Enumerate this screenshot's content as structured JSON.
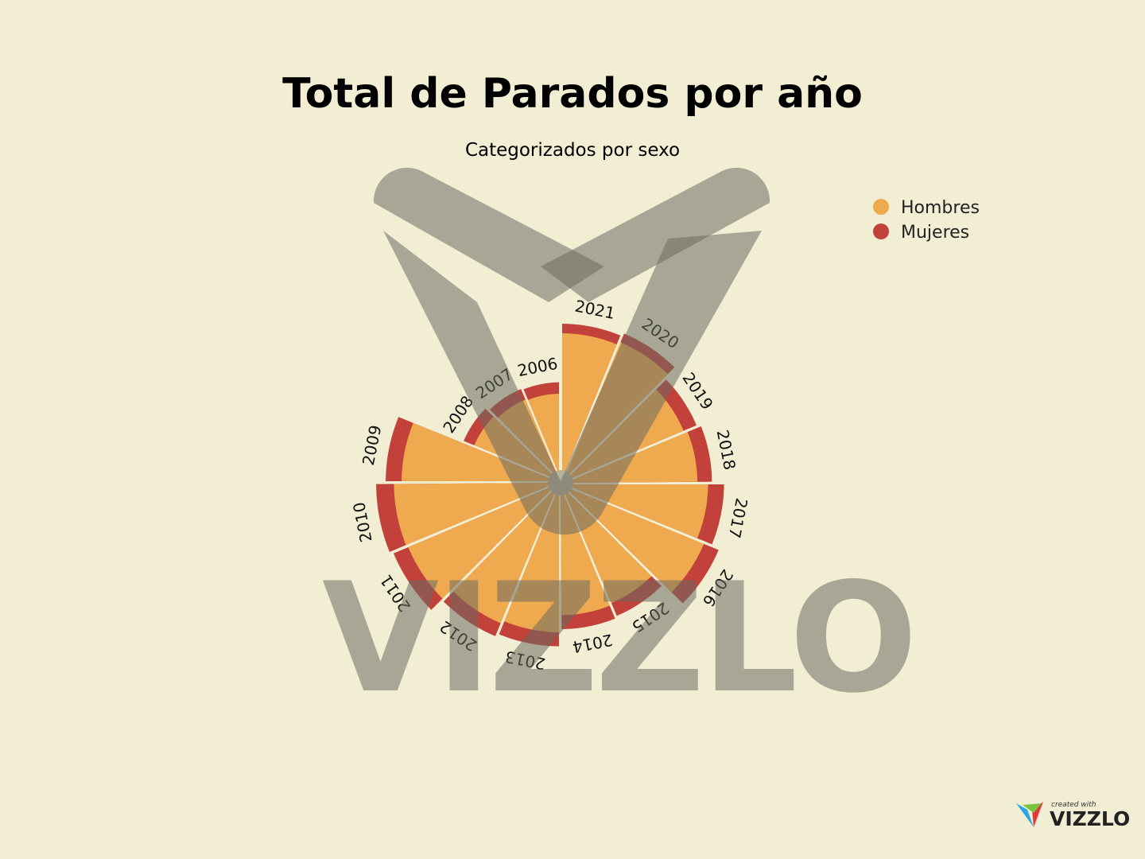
{
  "chart_data": {
    "type": "polar-bar",
    "title": "Total de Parados por año",
    "subtitle": "Categorizados por sexo",
    "legend_position": "top-right",
    "series": [
      {
        "name": "Hombres",
        "color": "#efa94e"
      },
      {
        "name": "Mujeres",
        "color": "#c2413b"
      }
    ],
    "categories": [
      "2006",
      "2007",
      "2008",
      "2009",
      "2010",
      "2011",
      "2012",
      "2013",
      "2014",
      "2015",
      "2016",
      "2017",
      "2018",
      "2019",
      "2020",
      "2021"
    ],
    "values": {
      "Hombres": [
        140,
        142,
        148,
        250,
        262,
        260,
        240,
        235,
        208,
        205,
        245,
        232,
        215,
        210,
        240,
        235
      ],
      "Mujeres": [
        158,
        160,
        166,
        275,
        290,
        285,
        262,
        257,
        230,
        227,
        270,
        257,
        238,
        232,
        255,
        250
      ]
    }
  },
  "legend": {
    "hombres": "Hombres",
    "mujeres": "Mujeres"
  },
  "watermark": "VIZZLO",
  "badge": {
    "created_with": "created with",
    "brand": "VIZZLO"
  }
}
